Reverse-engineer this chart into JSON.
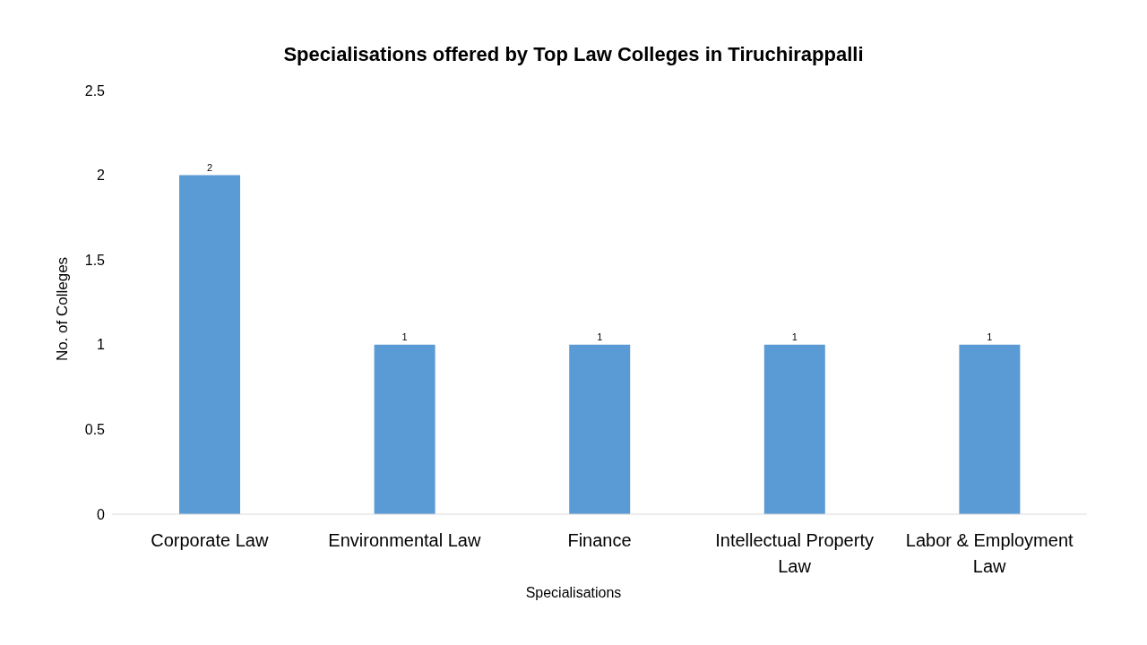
{
  "chart_data": {
    "type": "bar",
    "title": "Specialisations offered by Top Law Colleges in Tiruchirappalli",
    "xlabel": "Specialisations",
    "ylabel": "No. of Colleges",
    "categories": [
      "Corporate Law",
      "Environmental Law",
      "Finance",
      "Intellectual Property Law",
      "Labor & Employment Law"
    ],
    "values": [
      2,
      1,
      1,
      1,
      1
    ],
    "color": "#5b9bd5",
    "ylim": [
      0,
      2.5
    ],
    "yticks": [
      0,
      0.5,
      1,
      1.5,
      2,
      2.5
    ],
    "data_labels": true
  }
}
